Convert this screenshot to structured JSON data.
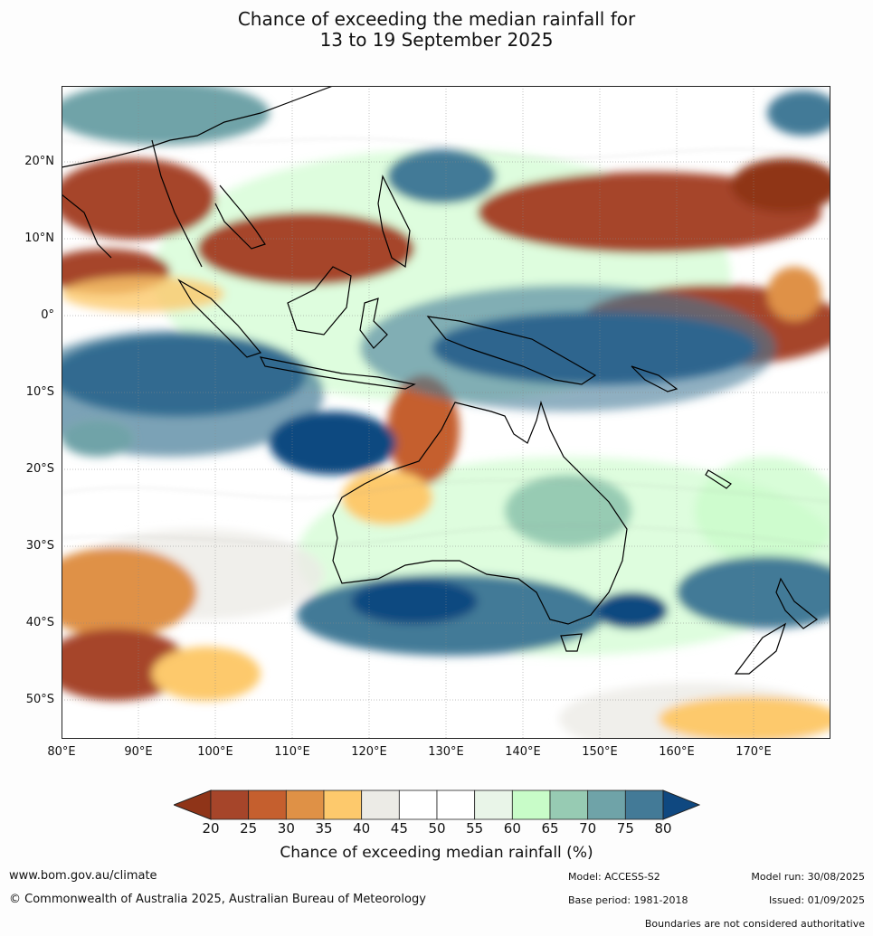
{
  "title": {
    "line1": "Chance of exceeding the median rainfall for",
    "line2": "13 to 19 September 2025"
  },
  "map": {
    "lat_labels": [
      "20°N",
      "10°N",
      "0°",
      "10°S",
      "20°S",
      "30°S",
      "40°S",
      "50°S"
    ],
    "lon_labels": [
      "80°E",
      "90°E",
      "100°E",
      "110°E",
      "120°E",
      "130°E",
      "140°E",
      "150°E",
      "160°E",
      "170°E"
    ],
    "lon_range": [
      80,
      180
    ],
    "lat_range": [
      -55,
      30
    ]
  },
  "colorbar": {
    "ticks": [
      "20",
      "25",
      "30",
      "35",
      "40",
      "45",
      "50",
      "55",
      "60",
      "65",
      "70",
      "75",
      "80"
    ],
    "colors": [
      "#a6452a",
      "#c55f2e",
      "#df9146",
      "#fdc96c",
      "#ecebe6",
      "#ffffff",
      "#ffffff",
      "#e9f5e8",
      "#c8fcc8",
      "#97cbb3",
      "#6fa3a8",
      "#437a97"
    ],
    "under_color": "#8f3418",
    "over_color": "#0f4880",
    "label": "Chance of exceeding median rainfall (%)"
  },
  "footer": {
    "website": "www.bom.gov.au/climate",
    "copyright": "© Commonwealth of Australia 2025, Australian Bureau of Meteorology",
    "model": "Model: ACCESS-S2",
    "base_period": "Base period: 1981-2018",
    "model_run": "Model run: 30/08/2025",
    "issued": "Issued: 01/09/2025",
    "disclaimer": "Boundaries are not considered authoritative"
  }
}
